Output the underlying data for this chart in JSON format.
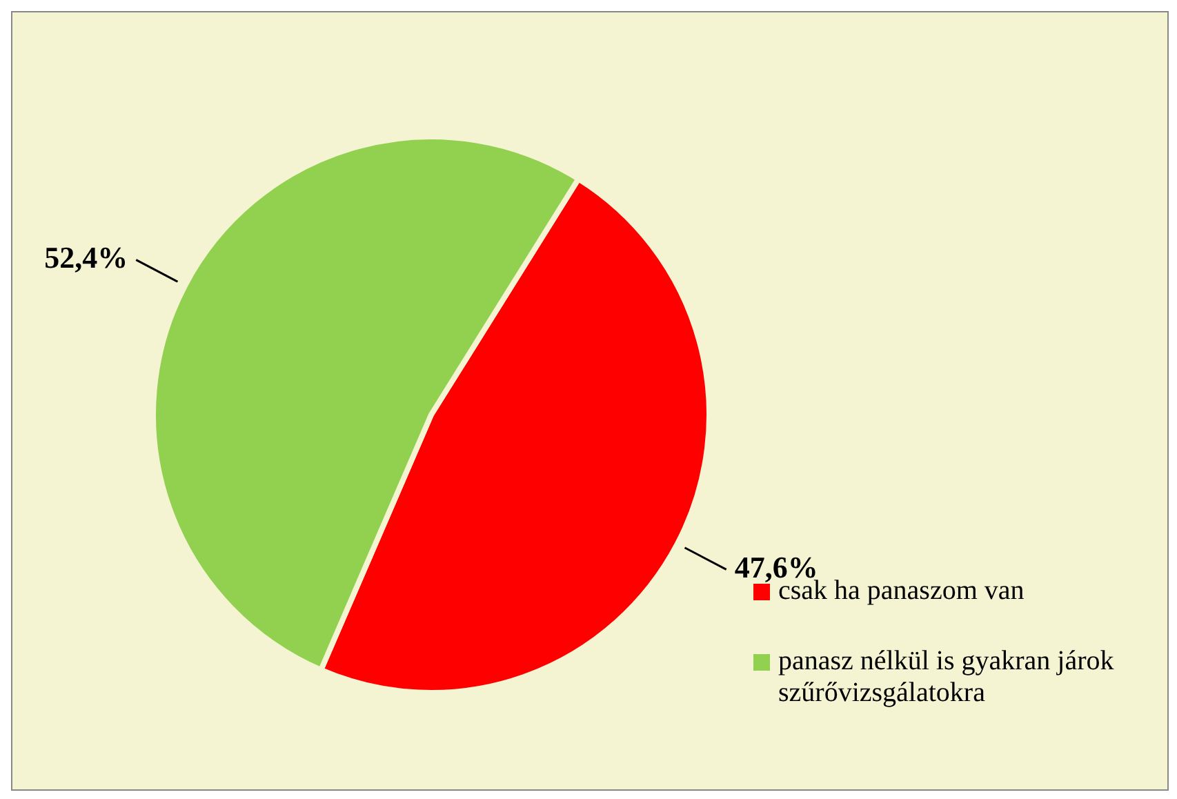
{
  "chart_data": {
    "type": "pie",
    "categories": [
      "csak ha panaszom van",
      "panasz nélkül is gyakran járok szűrővizsgálatokra"
    ],
    "values": [
      47.6,
      52.4
    ],
    "colors": [
      "#ff0000",
      "#92d050"
    ],
    "value_labels": [
      "47,6%",
      "52,4%"
    ],
    "legend": "bottom right"
  }
}
